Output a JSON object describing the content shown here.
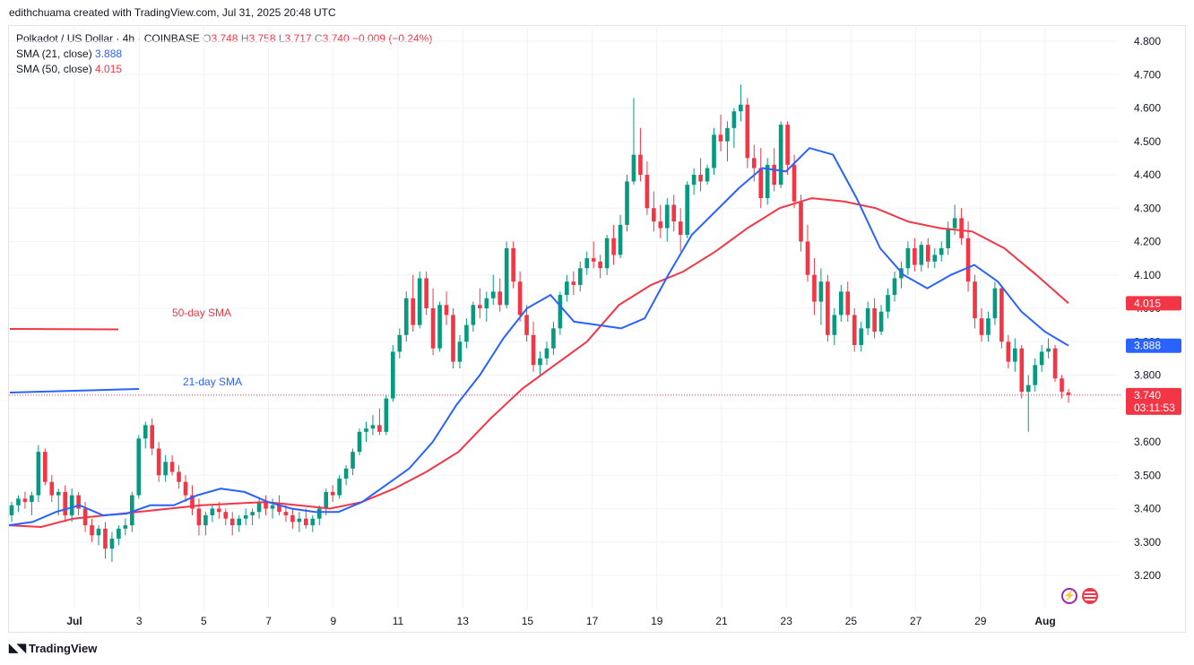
{
  "header": {
    "caption": "edithchuama created with TradingView.com, Jul 31, 2025 20:48 UTC"
  },
  "legend": {
    "symbol": "Polkadot / US Dollar · 4h · COINBASE",
    "o_label": "O",
    "o_value": "3.748",
    "h_label": "H",
    "h_value": "3.758",
    "l_label": "L",
    "l_value": "3.717",
    "c_label": "C",
    "c_value": "3.740",
    "change": "−0.009 (−0.24%)",
    "sma21_label": "SMA (21, close)",
    "sma21_value": "3.888",
    "sma50_label": "SMA (50, close)",
    "sma50_value": "4.015"
  },
  "annotations": {
    "sma50_text": "50-day SMA",
    "sma21_text": "21-day SMA"
  },
  "footer": {
    "brand": "TradingView"
  },
  "colors": {
    "up": "#089981",
    "down": "#f23645",
    "sma21": "#2962ff",
    "sma50": "#f23645",
    "grid": "#f0f3fa",
    "axis_text": "#131722"
  },
  "chart_data": {
    "type": "candlestick",
    "title": "Polkadot / US Dollar · 4h · COINBASE",
    "ylim": [
      3.12,
      4.88
    ],
    "y_ticks": [
      "3.200",
      "3.300",
      "3.400",
      "3.500",
      "3.600",
      "3.700",
      "3.800",
      "3.900",
      "4.000",
      "4.100",
      "4.200",
      "4.300",
      "4.400",
      "4.500",
      "4.600",
      "4.700",
      "4.800"
    ],
    "x_ticks": [
      "Jul",
      "3",
      "5",
      "7",
      "9",
      "11",
      "13",
      "15",
      "17",
      "19",
      "21",
      "23",
      "25",
      "27",
      "29",
      "Aug"
    ],
    "grid": true,
    "price_labels": {
      "sma50": {
        "value": 4.015,
        "text": "4.015"
      },
      "sma21": {
        "value": 3.888,
        "text": "3.888"
      },
      "last": {
        "value": 3.74,
        "text": "3.740",
        "countdown": "03:11:53"
      }
    },
    "ohlc": [
      [
        3.38,
        3.42,
        3.36,
        3.41
      ],
      [
        3.41,
        3.44,
        3.39,
        3.43
      ],
      [
        3.43,
        3.45,
        3.4,
        3.42
      ],
      [
        3.42,
        3.45,
        3.38,
        3.44
      ],
      [
        3.44,
        3.59,
        3.42,
        3.57
      ],
      [
        3.57,
        3.58,
        3.47,
        3.48
      ],
      [
        3.48,
        3.5,
        3.42,
        3.44
      ],
      [
        3.44,
        3.46,
        3.38,
        3.45
      ],
      [
        3.45,
        3.47,
        3.36,
        3.38
      ],
      [
        3.38,
        3.46,
        3.36,
        3.44
      ],
      [
        3.44,
        3.45,
        3.38,
        3.4
      ],
      [
        3.4,
        3.42,
        3.33,
        3.35
      ],
      [
        3.35,
        3.37,
        3.3,
        3.32
      ],
      [
        3.32,
        3.35,
        3.29,
        3.34
      ],
      [
        3.34,
        3.36,
        3.25,
        3.28
      ],
      [
        3.28,
        3.33,
        3.24,
        3.31
      ],
      [
        3.31,
        3.35,
        3.29,
        3.34
      ],
      [
        3.34,
        3.37,
        3.32,
        3.35
      ],
      [
        3.35,
        3.45,
        3.33,
        3.44
      ],
      [
        3.44,
        3.62,
        3.43,
        3.61
      ],
      [
        3.61,
        3.66,
        3.58,
        3.65
      ],
      [
        3.65,
        3.67,
        3.56,
        3.58
      ],
      [
        3.58,
        3.6,
        3.48,
        3.5
      ],
      [
        3.5,
        3.56,
        3.48,
        3.54
      ],
      [
        3.54,
        3.56,
        3.5,
        3.51
      ],
      [
        3.51,
        3.53,
        3.46,
        3.48
      ],
      [
        3.48,
        3.5,
        3.42,
        3.44
      ],
      [
        3.44,
        3.47,
        3.38,
        3.4
      ],
      [
        3.4,
        3.43,
        3.32,
        3.35
      ],
      [
        3.35,
        3.39,
        3.32,
        3.38
      ],
      [
        3.38,
        3.41,
        3.36,
        3.4
      ],
      [
        3.4,
        3.42,
        3.37,
        3.39
      ],
      [
        3.39,
        3.4,
        3.35,
        3.37
      ],
      [
        3.37,
        3.39,
        3.32,
        3.35
      ],
      [
        3.35,
        3.38,
        3.33,
        3.37
      ],
      [
        3.37,
        3.4,
        3.35,
        3.38
      ],
      [
        3.38,
        3.4,
        3.35,
        3.39
      ],
      [
        3.39,
        3.43,
        3.37,
        3.42
      ],
      [
        3.42,
        3.44,
        3.38,
        3.4
      ],
      [
        3.4,
        3.43,
        3.37,
        3.41
      ],
      [
        3.41,
        3.44,
        3.38,
        3.39
      ],
      [
        3.39,
        3.41,
        3.36,
        3.38
      ],
      [
        3.38,
        3.4,
        3.34,
        3.36
      ],
      [
        3.36,
        3.39,
        3.33,
        3.37
      ],
      [
        3.37,
        3.4,
        3.34,
        3.35
      ],
      [
        3.35,
        3.38,
        3.33,
        3.37
      ],
      [
        3.37,
        3.41,
        3.35,
        3.4
      ],
      [
        3.4,
        3.46,
        3.38,
        3.45
      ],
      [
        3.45,
        3.47,
        3.42,
        3.44
      ],
      [
        3.44,
        3.5,
        3.43,
        3.49
      ],
      [
        3.49,
        3.53,
        3.47,
        3.52
      ],
      [
        3.52,
        3.58,
        3.5,
        3.57
      ],
      [
        3.57,
        3.64,
        3.56,
        3.63
      ],
      [
        3.63,
        3.66,
        3.6,
        3.64
      ],
      [
        3.64,
        3.68,
        3.62,
        3.65
      ],
      [
        3.65,
        3.7,
        3.62,
        3.63
      ],
      [
        3.63,
        3.74,
        3.62,
        3.73
      ],
      [
        3.73,
        3.89,
        3.72,
        3.87
      ],
      [
        3.87,
        3.94,
        3.85,
        3.92
      ],
      [
        3.92,
        4.05,
        3.9,
        4.03
      ],
      [
        4.03,
        4.1,
        3.93,
        3.95
      ],
      [
        3.95,
        4.11,
        3.94,
        4.09
      ],
      [
        4.09,
        4.11,
        3.98,
        4.0
      ],
      [
        4.0,
        4.06,
        3.86,
        3.88
      ],
      [
        3.88,
        4.02,
        3.87,
        4.01
      ],
      [
        4.01,
        4.05,
        3.95,
        3.98
      ],
      [
        3.98,
        4.0,
        3.82,
        3.84
      ],
      [
        3.84,
        3.92,
        3.82,
        3.9
      ],
      [
        3.9,
        3.97,
        3.88,
        3.95
      ],
      [
        3.95,
        4.02,
        3.93,
        4.01
      ],
      [
        4.01,
        4.06,
        3.97,
        4.0
      ],
      [
        4.0,
        4.05,
        3.96,
        4.03
      ],
      [
        4.03,
        4.1,
        4.01,
        4.05
      ],
      [
        4.05,
        4.09,
        3.99,
        4.01
      ],
      [
        4.01,
        4.2,
        4.0,
        4.18
      ],
      [
        4.18,
        4.2,
        4.06,
        4.08
      ],
      [
        4.08,
        4.11,
        3.96,
        3.98
      ],
      [
        3.98,
        4.01,
        3.9,
        3.92
      ],
      [
        3.92,
        3.96,
        3.81,
        3.83
      ],
      [
        3.83,
        3.87,
        3.8,
        3.85
      ],
      [
        3.85,
        3.9,
        3.83,
        3.88
      ],
      [
        3.88,
        3.96,
        3.86,
        3.94
      ],
      [
        3.94,
        4.05,
        3.92,
        4.04
      ],
      [
        4.04,
        4.1,
        4.02,
        4.08
      ],
      [
        4.08,
        4.11,
        4.04,
        4.07
      ],
      [
        4.07,
        4.14,
        4.05,
        4.12
      ],
      [
        4.12,
        4.17,
        4.1,
        4.15
      ],
      [
        4.15,
        4.2,
        4.12,
        4.14
      ],
      [
        4.14,
        4.16,
        4.09,
        4.12
      ],
      [
        4.12,
        4.22,
        4.1,
        4.21
      ],
      [
        4.21,
        4.25,
        4.13,
        4.16
      ],
      [
        4.16,
        4.28,
        4.15,
        4.25
      ],
      [
        4.25,
        4.4,
        4.23,
        4.38
      ],
      [
        4.38,
        4.63,
        4.37,
        4.46
      ],
      [
        4.46,
        4.54,
        4.38,
        4.4
      ],
      [
        4.4,
        4.44,
        4.28,
        4.3
      ],
      [
        4.3,
        4.35,
        4.23,
        4.26
      ],
      [
        4.26,
        4.31,
        4.21,
        4.24
      ],
      [
        4.24,
        4.33,
        4.2,
        4.31
      ],
      [
        4.31,
        4.34,
        4.23,
        4.26
      ],
      [
        4.26,
        4.3,
        4.17,
        4.22
      ],
      [
        4.22,
        4.38,
        4.21,
        4.37
      ],
      [
        4.37,
        4.42,
        4.34,
        4.4
      ],
      [
        4.4,
        4.45,
        4.35,
        4.38
      ],
      [
        4.38,
        4.43,
        4.37,
        4.42
      ],
      [
        4.42,
        4.54,
        4.4,
        4.52
      ],
      [
        4.52,
        4.58,
        4.47,
        4.5
      ],
      [
        4.5,
        4.56,
        4.44,
        4.54
      ],
      [
        4.54,
        4.6,
        4.48,
        4.59
      ],
      [
        4.59,
        4.67,
        4.56,
        4.61
      ],
      [
        4.61,
        4.63,
        4.42,
        4.45
      ],
      [
        4.45,
        4.49,
        4.38,
        4.42
      ],
      [
        4.42,
        4.48,
        4.3,
        4.33
      ],
      [
        4.33,
        4.45,
        4.31,
        4.43
      ],
      [
        4.43,
        4.48,
        4.35,
        4.37
      ],
      [
        4.37,
        4.56,
        4.36,
        4.55
      ],
      [
        4.55,
        4.56,
        4.4,
        4.43
      ],
      [
        4.43,
        4.46,
        4.3,
        4.32
      ],
      [
        4.32,
        4.34,
        4.17,
        4.2
      ],
      [
        4.2,
        4.25,
        4.08,
        4.1
      ],
      [
        4.1,
        4.15,
        3.98,
        4.02
      ],
      [
        4.02,
        4.12,
        3.95,
        4.08
      ],
      [
        4.08,
        4.1,
        3.9,
        3.92
      ],
      [
        3.92,
        4.0,
        3.89,
        3.98
      ],
      [
        3.98,
        4.07,
        3.96,
        4.05
      ],
      [
        4.05,
        4.08,
        3.96,
        3.98
      ],
      [
        3.98,
        4.0,
        3.87,
        3.89
      ],
      [
        3.89,
        3.96,
        3.87,
        3.94
      ],
      [
        3.94,
        4.02,
        3.92,
        4.0
      ],
      [
        4.0,
        4.03,
        3.91,
        3.93
      ],
      [
        3.93,
        4.01,
        3.92,
        3.99
      ],
      [
        3.99,
        4.06,
        3.97,
        4.04
      ],
      [
        4.04,
        4.11,
        4.02,
        4.09
      ],
      [
        4.09,
        4.14,
        4.06,
        4.12
      ],
      [
        4.12,
        4.2,
        4.1,
        4.18
      ],
      [
        4.18,
        4.21,
        4.11,
        4.13
      ],
      [
        4.13,
        4.2,
        4.11,
        4.19
      ],
      [
        4.19,
        4.21,
        4.12,
        4.14
      ],
      [
        4.14,
        4.18,
        4.12,
        4.16
      ],
      [
        4.16,
        4.2,
        4.14,
        4.18
      ],
      [
        4.18,
        4.26,
        4.16,
        4.24
      ],
      [
        4.24,
        4.31,
        4.22,
        4.27
      ],
      [
        4.27,
        4.3,
        4.19,
        4.21
      ],
      [
        4.21,
        4.26,
        4.05,
        4.08
      ],
      [
        4.08,
        4.1,
        3.94,
        3.97
      ],
      [
        3.97,
        4.0,
        3.9,
        3.92
      ],
      [
        3.92,
        3.99,
        3.9,
        3.97
      ],
      [
        3.97,
        4.08,
        3.95,
        4.06
      ],
      [
        4.06,
        4.07,
        3.88,
        3.9
      ],
      [
        3.9,
        3.92,
        3.82,
        3.84
      ],
      [
        3.84,
        3.91,
        3.81,
        3.88
      ],
      [
        3.88,
        3.89,
        3.73,
        3.75
      ],
      [
        3.75,
        3.8,
        3.63,
        3.77
      ],
      [
        3.77,
        3.85,
        3.75,
        3.83
      ],
      [
        3.83,
        3.89,
        3.81,
        3.87
      ],
      [
        3.87,
        3.91,
        3.85,
        3.88
      ],
      [
        3.88,
        3.89,
        3.78,
        3.79
      ],
      [
        3.79,
        3.8,
        3.73,
        3.75
      ],
      [
        3.748,
        3.758,
        3.717,
        3.74
      ]
    ],
    "sma21": [
      3.35,
      3.36,
      3.39,
      3.41,
      3.38,
      3.385,
      3.41,
      3.41,
      3.44,
      3.46,
      3.45,
      3.42,
      3.4,
      3.39,
      3.39,
      3.42,
      3.47,
      3.52,
      3.6,
      3.71,
      3.8,
      3.91,
      4.0,
      4.04,
      3.96,
      3.95,
      3.94,
      3.97,
      4.1,
      4.22,
      4.29,
      4.36,
      4.42,
      4.41,
      4.48,
      4.46,
      4.33,
      4.18,
      4.1,
      4.06,
      4.1,
      4.13,
      4.08,
      3.99,
      3.93,
      3.888
    ],
    "sma50": [
      3.35,
      3.345,
      3.37,
      3.38,
      3.39,
      3.4,
      3.41,
      3.415,
      3.42,
      3.41,
      3.4,
      3.42,
      3.46,
      3.51,
      3.57,
      3.67,
      3.76,
      3.83,
      3.9,
      4.01,
      4.07,
      4.11,
      4.17,
      4.24,
      4.3,
      4.33,
      4.32,
      4.3,
      4.26,
      4.24,
      4.23,
      4.18,
      4.1,
      4.015
    ]
  }
}
